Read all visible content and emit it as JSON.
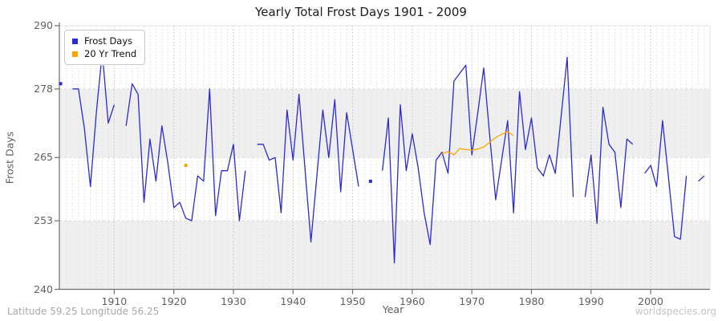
{
  "page_title": "Yearly Total Frost Days 1901 - 2009",
  "chart_data": {
    "type": "line",
    "title": "Yearly Total Frost Days 1901 - 2009",
    "xlabel": "Year",
    "ylabel": "Frost Days",
    "x_range": [
      1901,
      2009
    ],
    "ylim": [
      240,
      290
    ],
    "yticks": [
      240,
      253,
      265,
      278,
      290
    ],
    "xticks": [
      1910,
      1920,
      1930,
      1940,
      1950,
      1960,
      1970,
      1980,
      1990,
      2000
    ],
    "grid": "vertical dashed line per year (decades darker), horizontal dashed lines at 253/265/278, alternating gray bands 240-253 and 265-278",
    "legend_position": "top-left",
    "legend": [
      {
        "label": "Frost Days",
        "color": "#2a2ad2"
      },
      {
        "label": "20 Yr Trend",
        "color": "#ffa500"
      }
    ],
    "series": [
      {
        "name": "Frost Days",
        "color": "#2a2ad2",
        "start_year": 1901,
        "values": [
          279,
          null,
          278,
          278,
          270.5,
          259.5,
          273.5,
          285,
          271.5,
          275,
          null,
          271,
          279,
          277,
          256.5,
          268.5,
          260.5,
          271,
          264,
          255.5,
          256.5,
          253.5,
          253,
          261.5,
          260.5,
          278,
          254,
          262.5,
          262.5,
          267.5,
          253,
          262.5,
          null,
          267.5,
          267.5,
          264.5,
          265,
          254.5,
          274,
          264.5,
          277,
          263,
          249,
          261.5,
          274,
          265,
          276,
          258.5,
          273.5,
          266.5,
          259.5,
          null,
          260.5,
          null,
          262.5,
          272.5,
          245,
          275,
          262.5,
          269.5,
          263,
          254.5,
          248.5,
          264.5,
          266,
          262,
          279.5,
          281,
          282.5,
          265.5,
          273.5,
          282,
          269,
          257,
          264.5,
          272,
          254.5,
          277.5,
          266.5,
          272.5,
          263,
          261.5,
          265.5,
          262,
          273,
          284,
          257.5,
          null,
          257.5,
          265.5,
          252.5,
          274.5,
          267.5,
          266,
          255.5,
          268.5,
          267.5,
          null,
          262,
          263.5,
          259.5,
          272,
          261,
          250,
          249.5,
          261.5,
          null,
          260.5,
          261.5
        ]
      },
      {
        "name": "20 Yr Trend",
        "color": "#ffa500",
        "start_year": 1901,
        "values": [
          null,
          null,
          null,
          null,
          null,
          null,
          null,
          null,
          null,
          null,
          null,
          null,
          null,
          null,
          null,
          null,
          null,
          null,
          null,
          null,
          null,
          263.5,
          null,
          null,
          null,
          null,
          null,
          null,
          null,
          null,
          null,
          null,
          null,
          null,
          null,
          null,
          null,
          null,
          null,
          null,
          null,
          null,
          null,
          null,
          null,
          null,
          null,
          null,
          null,
          null,
          null,
          null,
          null,
          null,
          null,
          null,
          null,
          null,
          null,
          null,
          null,
          null,
          null,
          null,
          265.7,
          266.1,
          265.5,
          266.7,
          266.5,
          266.4,
          266.6,
          267.0,
          267.9,
          268.8,
          269.4,
          269.9,
          269.2,
          null,
          null,
          null,
          null,
          null,
          null,
          null,
          null,
          null,
          null,
          null,
          null,
          null,
          null,
          null,
          null,
          null,
          null,
          null,
          null,
          null,
          null,
          null,
          null,
          null,
          null,
          null,
          null,
          null,
          null,
          null,
          null
        ]
      }
    ],
    "footer_left": "Latitude 59.25 Longitude 56.25",
    "footer_right": "worldspecies.org"
  },
  "style_colors": {
    "band_gray": "#efefef",
    "grid_year": "#e4e4e4",
    "grid_decade": "#cbcbcb",
    "grid_horizontal": "#d9d9d9",
    "axis": "#6e6e6e",
    "plot_border": "#e3e3e3"
  }
}
